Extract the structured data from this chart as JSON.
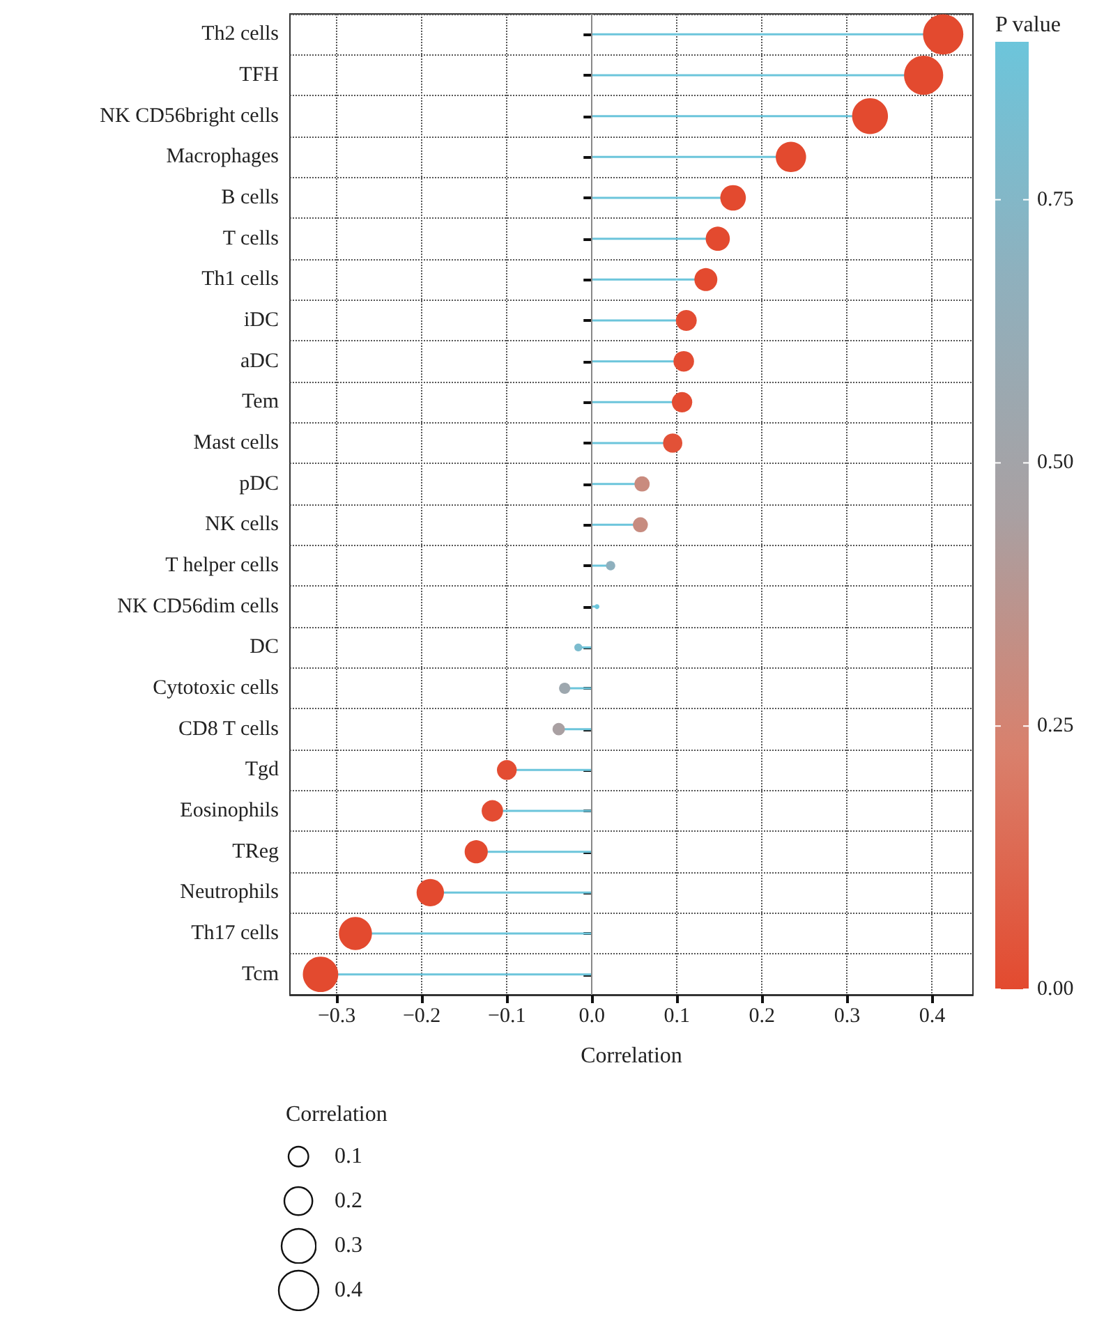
{
  "chart_data": {
    "type": "lollipop",
    "xlabel": "Correlation",
    "clabel": "P value",
    "legend_title": "Correlation",
    "categories": [
      "Th2 cells",
      "TFH",
      "NK CD56bright cells",
      "Macrophages",
      "B cells",
      "T cells",
      "Th1 cells",
      "iDC",
      "aDC",
      "Tem",
      "Mast cells",
      "pDC",
      "NK cells",
      "T helper cells",
      "NK CD56dim cells",
      "DC",
      "Cytotoxic cells",
      "CD8 T cells",
      "Tgd",
      "Eosinophils",
      "TReg",
      "Neutrophils",
      "Th17 cells",
      "Tcm"
    ],
    "series": [
      {
        "values": [
          0.413,
          0.39,
          0.327,
          0.234,
          0.166,
          0.148,
          0.134,
          0.111,
          0.108,
          0.106,
          0.095,
          0.059,
          0.057,
          0.022,
          0.006,
          -0.016,
          -0.032,
          -0.039,
          -0.1,
          -0.117,
          -0.136,
          -0.19,
          -0.278,
          -0.319
        ],
        "sizes": [
          0.413,
          0.39,
          0.327,
          0.234,
          0.166,
          0.148,
          0.134,
          0.111,
          0.108,
          0.106,
          0.095,
          0.059,
          0.057,
          0.022,
          0.006,
          0.016,
          0.032,
          0.039,
          0.1,
          0.117,
          0.136,
          0.19,
          0.278,
          0.319
        ],
        "cvalues": [
          0,
          0,
          0,
          0,
          0,
          0,
          0,
          0.01,
          0.01,
          0.01,
          0.03,
          0.3,
          0.31,
          0.68,
          0.9,
          0.8,
          0.55,
          0.45,
          0.01,
          0.01,
          0,
          0,
          0,
          0
        ]
      }
    ],
    "size_legend": [
      {
        "value": 0.1,
        "label": "0.1"
      },
      {
        "value": 0.2,
        "label": "0.2"
      },
      {
        "value": 0.3,
        "label": "0.3"
      },
      {
        "value": 0.4,
        "label": "0.4"
      }
    ],
    "orientation": "horizontal",
    "clim": [
      0,
      0.9
    ],
    "cticks": [
      {
        "value": 0,
        "label": "0.00"
      },
      {
        "value": 0.25,
        "label": "0.25"
      },
      {
        "value": 0.5,
        "label": "0.50"
      },
      {
        "value": 0.75,
        "label": "0.75"
      }
    ],
    "xlim": [
      -0.355,
      0.448
    ],
    "xticks": [
      {
        "value": -0.3,
        "label": "−0.3"
      },
      {
        "value": -0.2,
        "label": "−0.2"
      },
      {
        "value": -0.1,
        "label": "−0.1"
      },
      {
        "value": 0,
        "label": "0.0"
      },
      {
        "value": 0.1,
        "label": "0.1"
      },
      {
        "value": 0.2,
        "label": "0.2"
      },
      {
        "value": 0.3,
        "label": "0.3"
      },
      {
        "value": 0.4,
        "label": "0.4"
      }
    ],
    "ref_lines": [
      {
        "axis": "x",
        "value": 0,
        "color": "#888888"
      }
    ],
    "grid": true,
    "line_style": "dotted",
    "marker": "circle"
  }
}
